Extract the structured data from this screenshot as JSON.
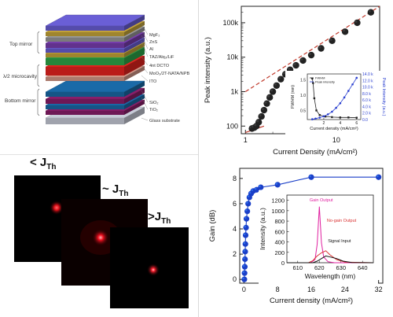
{
  "stack": {
    "groups": {
      "top": "Top mirror",
      "cavity": "λ/2 microcavity",
      "bottom": "Bottom mirror"
    },
    "layers": [
      {
        "label": "MgF₂",
        "color": "#6a5fd6"
      },
      {
        "label": "ZnS",
        "color": "#c7a63a"
      },
      {
        "label": "Al",
        "color": "#9a9a9a"
      },
      {
        "label": "TAZ/Alq₃/LiF",
        "color": "#7a3fb0"
      },
      {
        "label": "4nt DCTO",
        "color": "#2fa84a"
      },
      {
        "label": "MoO₃/2T-NATA/NPB",
        "color": "#e8231f"
      },
      {
        "label": "ITO",
        "color": "#d69a8a"
      },
      {
        "label": "SiO₂",
        "color": "#1a6aa8"
      },
      {
        "label": "TiO₂",
        "color": "#8a1e6a"
      },
      {
        "label": "Glass substrate",
        "color": "#c8ccd8"
      }
    ]
  },
  "spots": {
    "labels": [
      {
        "pre": "< J",
        "sub": "Th"
      },
      {
        "pre": "~ J",
        "sub": "Th"
      },
      {
        "pre": ">J",
        "sub": "Th"
      }
    ]
  },
  "chart_data": [
    {
      "type": "scatter",
      "xscale": "log",
      "yscale": "log",
      "xlim": [
        0.9,
        30
      ],
      "ylim": [
        60,
        300000
      ],
      "xtick_labels": [
        "1",
        "10"
      ],
      "ytick_labels": [
        "100",
        "1k",
        "10k",
        "100k"
      ],
      "xlabel": "Current Density (mA/cm²)",
      "ylabel": "Peak intensity (a.u.)",
      "series": [
        {
          "marker": "sphere",
          "color": "#222222",
          "x": [
            1.18,
            1.25,
            1.32,
            1.4,
            1.5,
            1.6,
            1.72,
            1.85,
            2.0,
            2.2,
            2.45,
            2.75,
            3.1,
            3.6,
            4.3,
            5.3,
            6.8,
            9,
            12.5,
            17,
            24
          ],
          "y": [
            85,
            90,
            100,
            130,
            190,
            290,
            450,
            680,
            1000,
            1500,
            2300,
            3200,
            4300,
            5800,
            8000,
            11500,
            18000,
            30000,
            55000,
            100000,
            200000
          ]
        }
      ],
      "fit_lines": [
        {
          "style": "dashed",
          "color": "#c0392b",
          "x": [
            1.0,
            30
          ],
          "y": [
            1000,
            300000
          ]
        },
        {
          "style": "solid",
          "color": "#c0392b",
          "x": [
            1.0,
            1.6
          ],
          "y": [
            65,
            100
          ]
        }
      ],
      "inset": {
        "type": "line",
        "xlabel": "Current density (mA/cm²)",
        "ylabel_left": "FWHM (nm)",
        "ylabel_right": "Peak Intensity (a.u.)",
        "xlim": [
          0,
          6.5
        ],
        "xtick_labels": [
          "2",
          "4",
          "6"
        ],
        "ytick_labels_left": [
          "0.5",
          "1.0",
          "1.5"
        ],
        "ytick_labels_right": [
          "0.0",
          "2.0 k",
          "4.0 k",
          "6.0 k",
          "8.0 k",
          "10.0 k",
          "12.0 k",
          "14.0 k"
        ],
        "legend": [
          "FWHM",
          "Peak intensity"
        ],
        "series": [
          {
            "name": "FWHM",
            "axis": "left",
            "color": "#222222",
            "ylim": [
              0.2,
              1.7
            ],
            "x": [
              0.6,
              0.7,
              0.85,
              1.1,
              1.5,
              2.2,
              3.0,
              4.0,
              5.0,
              6.0
            ],
            "y": [
              1.55,
              1.4,
              0.9,
              0.5,
              0.35,
              0.3,
              0.28,
              0.27,
              0.27,
              0.26
            ]
          },
          {
            "name": "Peak intensity",
            "axis": "right",
            "color": "#2a3fd0",
            "ylim": [
              0,
              14000
            ],
            "x": [
              0.6,
              1.0,
              1.5,
              2.0,
              2.5,
              3.0,
              3.5,
              4.0,
              4.5,
              5.0,
              5.5,
              6.0
            ],
            "y": [
              100,
              300,
              600,
              1000,
              1600,
              2400,
              3600,
              5000,
              6800,
              8800,
              10800,
              12800
            ]
          }
        ]
      }
    },
    {
      "type": "line",
      "xlim": [
        -1,
        33
      ],
      "ylim": [
        -0.3,
        8.8
      ],
      "xticks": [
        0,
        8,
        16,
        24,
        32
      ],
      "yticks": [
        0,
        2,
        4,
        6,
        8
      ],
      "xlabel": "Current density (mA/cm²)",
      "ylabel": "Gain (dB)",
      "series": [
        {
          "marker": "sphere",
          "color": "#1a3fc8",
          "x": [
            0.1,
            0.15,
            0.2,
            0.25,
            0.3,
            0.35,
            0.4,
            0.5,
            0.6,
            0.8,
            1.0,
            1.3,
            1.7,
            2.2,
            3.0,
            4.0,
            8.0,
            16.0,
            32.0
          ],
          "y": [
            0.0,
            0.5,
            1.0,
            1.6,
            2.2,
            2.8,
            3.5,
            4.1,
            4.8,
            5.4,
            6.0,
            6.5,
            6.8,
            7.0,
            7.1,
            7.3,
            7.5,
            8.1,
            8.1
          ]
        }
      ],
      "inset": {
        "type": "line",
        "xlabel": "Wavelength (nm)",
        "ylabel": "Intensity (a.u.)",
        "xlim": [
          605,
          645
        ],
        "ylim": [
          0,
          1300
        ],
        "xticks": [
          610,
          620,
          630,
          640
        ],
        "yticks": [
          0,
          200,
          400,
          600,
          800,
          1000,
          1200
        ],
        "annotations": [
          "Gain Output",
          "No-gain Output",
          "Signal Input"
        ],
        "series": [
          {
            "name": "Gain Output",
            "color": "#e020a0",
            "x": [
              605,
              616,
              618,
              619,
              620,
              621,
              622,
              624,
              627,
              645
            ],
            "y": [
              0,
              0,
              60,
              350,
              1080,
              380,
              110,
              20,
              0,
              0
            ]
          },
          {
            "name": "No-gain Output",
            "color": "#d93030",
            "x": [
              605,
              615,
              617,
              619,
              621,
              623,
              625,
              628,
              632,
              645
            ],
            "y": [
              0,
              0,
              40,
              130,
              190,
              230,
              150,
              60,
              10,
              0
            ]
          },
          {
            "name": "Signal Input",
            "color": "#111111",
            "x": [
              605,
              617,
              619,
              621,
              623,
              625,
              628,
              631,
              635,
              645
            ],
            "y": [
              0,
              0,
              30,
              80,
              130,
              110,
              80,
              30,
              5,
              0
            ]
          }
        ]
      }
    }
  ]
}
